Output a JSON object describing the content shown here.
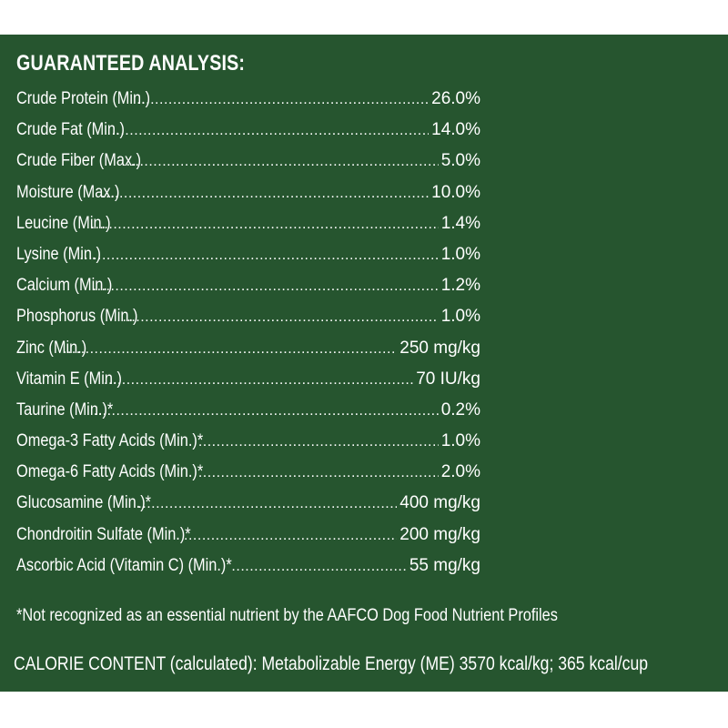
{
  "title": "GUARANTEED ANALYSIS:",
  "rows": [
    {
      "label": "Crude Protein (Min.)",
      "value": "26.0%"
    },
    {
      "label": "Crude Fat (Min.)",
      "value": "14.0%"
    },
    {
      "label": "Crude Fiber (Max.)",
      "value": "5.0%"
    },
    {
      "label": "Moisture (Max.)",
      "value": "10.0%"
    },
    {
      "label": "Leucine (Min.)",
      "value": "1.4%"
    },
    {
      "label": "Lysine (Min.)",
      "value": "1.0%"
    },
    {
      "label": "Calcium (Min.)",
      "value": "1.2%"
    },
    {
      "label": "Phosphorus (Min.)",
      "value": "1.0%"
    },
    {
      "label": "Zinc (Min.)",
      "value": "250 mg/kg"
    },
    {
      "label": "Vitamin E (Min.)",
      "value": "70 IU/kg"
    },
    {
      "label": "Taurine (Min.)*",
      "value": "0.2%"
    },
    {
      "label": "Omega-3 Fatty Acids (Min.)*",
      "value": "1.0%"
    },
    {
      "label": "Omega-6 Fatty Acids (Min.)*",
      "value": "2.0%"
    },
    {
      "label": "Glucosamine (Min.)*",
      "value": "400 mg/kg"
    },
    {
      "label": "Chondroitin Sulfate (Min.)*",
      "value": "200 mg/kg"
    },
    {
      "label": "Ascorbic Acid (Vitamin C) (Min.)*",
      "value": "55 mg/kg"
    }
  ],
  "footnote": "*Not recognized as an essential nutrient by the AAFCO Dog Food Nutrient Profiles",
  "calorie_content": "CALORIE CONTENT (calculated): Metabolizable Energy (ME) 3570 kcal/kg; 365 kcal/cup",
  "colors": {
    "panel_background": "#26552f",
    "text": "#ffffff",
    "page_background": "#ffffff"
  }
}
